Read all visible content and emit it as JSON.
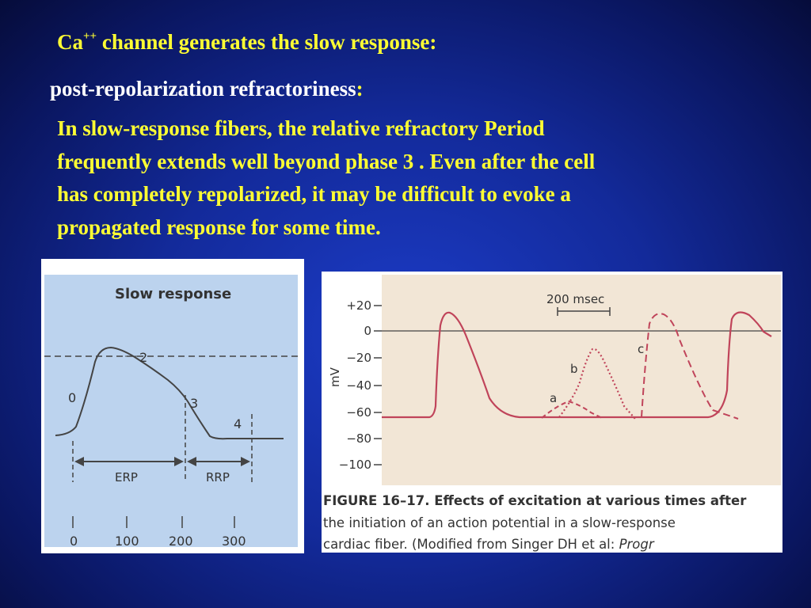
{
  "slide": {
    "heading_prefix": "Ca",
    "heading_sup": "++",
    "heading_rest": " channel generates the slow response:",
    "subheading": "post-repolarization refractoriness",
    "subheading_colon": ":",
    "paragraph_lines": [
      "In slow-response fibers,  the relative refractory Period",
      "frequently extends well beyond phase 3 . Even after the cell",
      "has completely repolarized, it may be difficult to evoke a",
      "propagated response for some time."
    ]
  },
  "left_figure": {
    "title": "Slow response",
    "phase_labels": [
      "0",
      "2",
      "3",
      "4"
    ],
    "erp_label": "ERP",
    "rrp_label": "RRP",
    "x_ticks": [
      "0",
      "100",
      "200",
      "300"
    ],
    "background": "#bcd3ee",
    "curve_color": "#444444"
  },
  "right_figure": {
    "scale_bar_label": "200 msec",
    "y_axis_label": "mV",
    "y_ticks": [
      "+20",
      "0",
      "−20",
      "−40",
      "−60",
      "−80",
      "−100"
    ],
    "curve_labels": [
      "a",
      "b",
      "c"
    ],
    "background": "#f2e6d6",
    "curve_color": "#c0445a",
    "caption_lines": [
      "the initiation of an action potential in a slow-response",
      "cardiac fiber. (Modified from Singer DH et al: "
    ],
    "caption_figure_number": "FIGURE 16–17.",
    "caption_first_line": "  Effects of excitation at various times after",
    "caption_italic": "Progr"
  }
}
